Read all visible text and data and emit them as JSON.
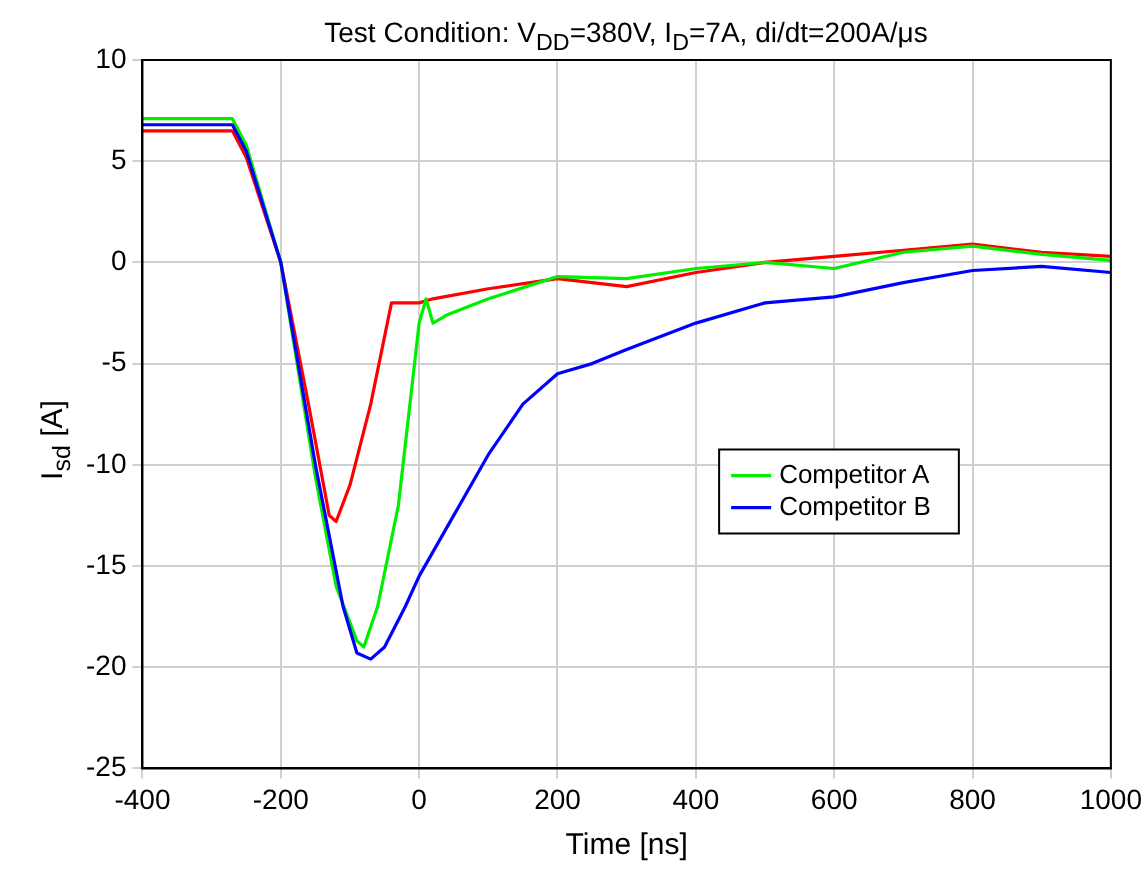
{
  "chart_data": {
    "type": "line",
    "title": "Test Condition: V$_{DD}$=380V, I$_{D}$=7A, di/dt=200A/μs",
    "xlabel": "Time [ns]",
    "ylabel": "I$_{sd}$ [A]",
    "xlim": [
      -400,
      1000
    ],
    "xticks": [
      -400,
      -200,
      0,
      200,
      400,
      600,
      800,
      1000
    ],
    "ylim": [
      -25,
      10
    ],
    "yticks": [
      -25,
      -20,
      -15,
      -10,
      -5,
      0,
      5,
      10
    ],
    "grid": true,
    "legend": "right",
    "marker": "none",
    "line_style": "solid",
    "series": [
      {
        "color": "#ff0000",
        "x": [
          -400,
          -270,
          -250,
          -200,
          -160,
          -130,
          -120,
          -100,
          -70,
          -40,
          0,
          20,
          100,
          200,
          300,
          400,
          500,
          600,
          700,
          800,
          900,
          1000
        ],
        "values": [
          6.5,
          6.5,
          5.2,
          0,
          -7,
          -12.5,
          -12.8,
          -11,
          -7,
          -2,
          -2,
          -1.8,
          -1.3,
          -0.8,
          -1.2,
          -0.5,
          0,
          0.3,
          0.6,
          0.9,
          0.5,
          0.3
        ]
      },
      {
        "name": "Competitor A",
        "color": "#00ee00",
        "x": [
          -400,
          -270,
          -250,
          -200,
          -150,
          -120,
          -90,
          -80,
          -60,
          -30,
          -10,
          0,
          10,
          20,
          40,
          100,
          200,
          300,
          400,
          500,
          600,
          700,
          800,
          900,
          1000
        ],
        "values": [
          7.1,
          7.1,
          5.8,
          0,
          -10.6,
          -16,
          -18.7,
          -19,
          -17,
          -12,
          -6,
          -3,
          -1.8,
          -3,
          -2.6,
          -1.8,
          -0.7,
          -0.8,
          -0.3,
          0,
          -0.3,
          0.5,
          0.8,
          0.4,
          0.1
        ]
      },
      {
        "name": "Competitor B",
        "color": "#0000ff",
        "x": [
          -400,
          -270,
          -250,
          -200,
          -150,
          -110,
          -90,
          -70,
          -50,
          -20,
          0,
          50,
          100,
          150,
          200,
          250,
          300,
          400,
          500,
          600,
          700,
          800,
          900,
          1000
        ],
        "values": [
          6.8,
          6.8,
          5.5,
          0,
          -10,
          -17,
          -19.3,
          -19.6,
          -19,
          -17,
          -15.5,
          -12.5,
          -9.5,
          -7,
          -5.5,
          -5,
          -4.3,
          -3,
          -2,
          -1.7,
          -1,
          -0.4,
          -0.2,
          -0.5
        ]
      }
    ]
  }
}
